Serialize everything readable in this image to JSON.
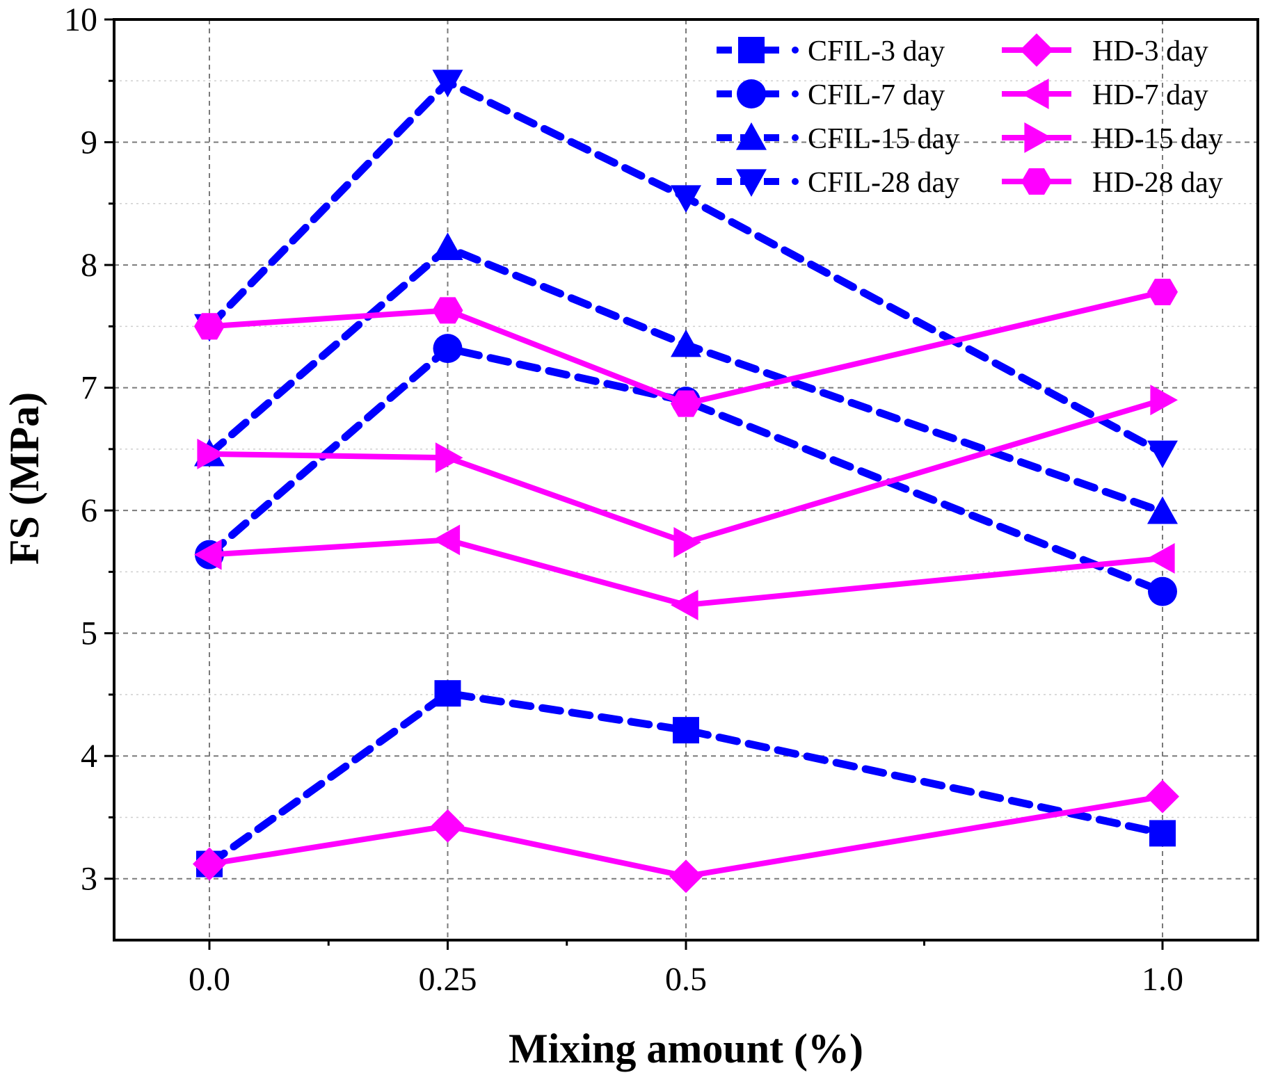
{
  "chart_data": {
    "type": "line",
    "title": "",
    "xlabel": "Mixing amount (%)",
    "ylabel": "FS (MPa)",
    "categories": [
      "0.0",
      "0.25",
      "0.5",
      "1.0"
    ],
    "x": [
      0,
      0.25,
      0.5,
      1.0
    ],
    "xlim": [
      -0.1,
      1.1
    ],
    "ylim": [
      2.5,
      10
    ],
    "yticks": [
      3,
      4,
      5,
      6,
      7,
      8,
      9,
      10
    ],
    "ytick_labels": [
      "3",
      "4",
      "5",
      "6",
      "7",
      "8",
      "9",
      "10"
    ],
    "grid": true,
    "legend_position": "top-right",
    "colors": {
      "CFIL": "#0000ff",
      "HD": "#ff00ff"
    },
    "series": [
      {
        "name": "CFIL-3 day",
        "group": "CFIL",
        "marker": "square",
        "line": "dashed",
        "values": [
          3.12,
          4.51,
          4.21,
          3.37
        ]
      },
      {
        "name": "CFIL-7 day",
        "group": "CFIL",
        "marker": "circle",
        "line": "dashed",
        "values": [
          5.64,
          7.32,
          6.89,
          5.34
        ]
      },
      {
        "name": "CFIL-15 day",
        "group": "CFIL",
        "marker": "triangle-up",
        "line": "dashed",
        "values": [
          6.46,
          8.14,
          7.35,
          5.99
        ]
      },
      {
        "name": "CFIL-28 day",
        "group": "CFIL",
        "marker": "triangle-down",
        "line": "dashed",
        "values": [
          7.5,
          9.49,
          8.55,
          6.47
        ]
      },
      {
        "name": "HD-3 day",
        "group": "HD",
        "marker": "diamond",
        "line": "solid",
        "values": [
          3.12,
          3.43,
          3.02,
          3.67
        ]
      },
      {
        "name": "HD-7 day",
        "group": "HD",
        "marker": "triangle-left",
        "line": "solid",
        "values": [
          5.64,
          5.76,
          5.23,
          5.61
        ]
      },
      {
        "name": "HD-15 day",
        "group": "HD",
        "marker": "triangle-right",
        "line": "solid",
        "values": [
          6.46,
          6.43,
          5.74,
          6.9
        ]
      },
      {
        "name": "HD-28 day",
        "group": "HD",
        "marker": "hexagon",
        "line": "solid",
        "values": [
          7.5,
          7.63,
          6.87,
          7.78
        ]
      }
    ]
  }
}
